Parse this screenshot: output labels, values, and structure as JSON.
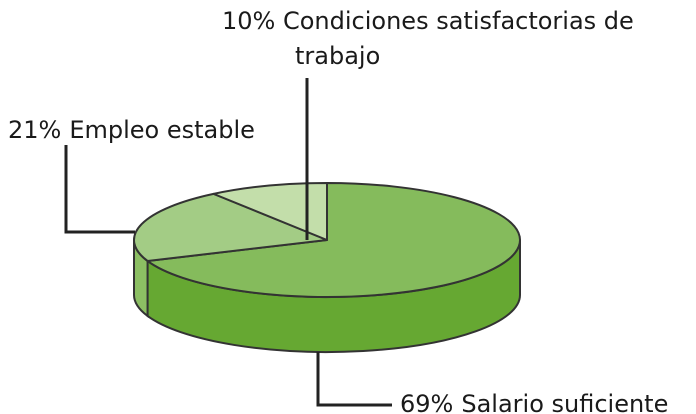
{
  "chart_data": {
    "type": "pie3d",
    "categories": [
      "Salario suficiente",
      "Empleo estable",
      "Condiciones satisfactorias de trabajo"
    ],
    "values": [
      69,
      21,
      10
    ],
    "value_labels": [
      "69%",
      "21%",
      "10%"
    ],
    "colors": [
      "#85bb5c",
      "#a3cc85",
      "#c3deaa"
    ],
    "side_colors": [
      "#66a832",
      "#8cbf63",
      "#a8cf8a"
    ]
  }
}
